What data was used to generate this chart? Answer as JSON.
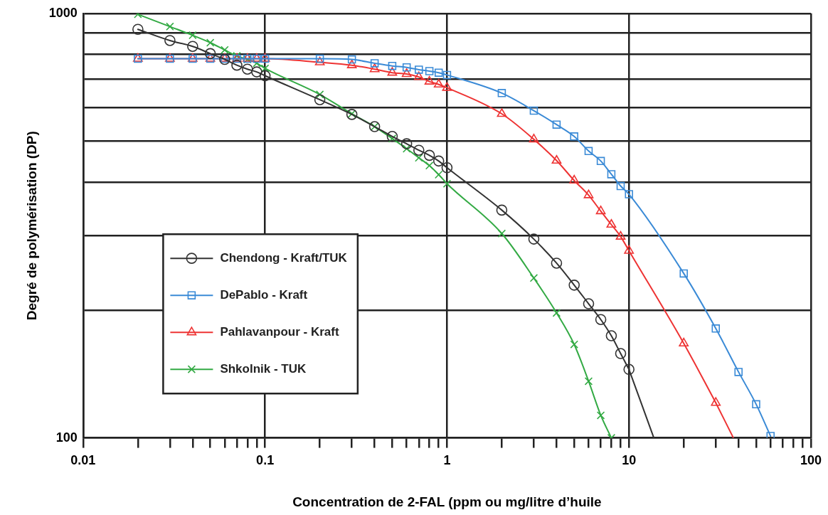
{
  "chart_data": {
    "type": "line",
    "xlabel": "Concentration de 2-FAL (ppm ou mg/litre d’huile",
    "ylabel": "Degré de polymérisation (DP)",
    "log": "xy",
    "grid": true,
    "legend": "left",
    "xlim": [
      0.01,
      100
    ],
    "ylim": [
      100,
      1000
    ],
    "xticks": [
      0.01,
      {
        "value": 0.02,
        "label": null
      },
      {
        "value": 0.03,
        "label": null
      },
      {
        "value": 0.04,
        "label": null
      },
      {
        "value": 0.05,
        "label": null
      },
      {
        "value": 0.06,
        "label": null
      },
      {
        "value": 0.07,
        "label": null
      },
      {
        "value": 0.08,
        "label": null
      },
      {
        "value": 0.09,
        "label": null
      },
      0.1,
      {
        "value": 0.2,
        "label": null
      },
      {
        "value": 0.3,
        "label": null
      },
      {
        "value": 0.4,
        "label": null
      },
      {
        "value": 0.5,
        "label": null
      },
      {
        "value": 0.6,
        "label": null
      },
      {
        "value": 0.7,
        "label": null
      },
      {
        "value": 0.8,
        "label": null
      },
      {
        "value": 0.9,
        "label": null
      },
      1,
      {
        "value": 2,
        "label": null
      },
      {
        "value": 3,
        "label": null
      },
      {
        "value": 4,
        "label": null
      },
      {
        "value": 5,
        "label": null
      },
      {
        "value": 6,
        "label": null
      },
      {
        "value": 7,
        "label": null
      },
      {
        "value": 8,
        "label": null
      },
      {
        "value": 9,
        "label": null
      },
      10,
      {
        "value": 20,
        "label": null
      },
      {
        "value": 30,
        "label": null
      },
      {
        "value": 40,
        "label": null
      },
      {
        "value": 50,
        "label": null
      },
      {
        "value": 60,
        "label": null
      },
      {
        "value": 70,
        "label": null
      },
      {
        "value": 80,
        "label": null
      },
      {
        "value": 90,
        "label": null
      },
      100
    ],
    "yticks": [
      100,
      {
        "value": 200,
        "label": null
      },
      {
        "value": 300,
        "label": null
      },
      {
        "value": 400,
        "label": null
      },
      {
        "value": 500,
        "label": null
      },
      {
        "value": 600,
        "label": null
      },
      {
        "value": 700,
        "label": null
      },
      {
        "value": 800,
        "label": null
      },
      {
        "value": 900,
        "label": null
      },
      1000
    ],
    "series": [
      {
        "name": "Chendong - Kraft/TUK",
        "color": "#333333",
        "marker": "circle",
        "x": [
          0.02,
          0.03,
          0.04,
          0.05,
          0.06,
          0.07,
          0.08,
          0.09,
          0.1,
          0.2,
          0.3,
          0.4,
          0.5,
          0.6,
          0.7,
          0.8,
          0.9,
          1,
          2,
          3,
          4,
          5,
          6,
          7,
          8,
          9,
          10
        ],
        "values": [
          917,
          863,
          836,
          804,
          779,
          755,
          739,
          728,
          713,
          626,
          578,
          541,
          513,
          493,
          476,
          463,
          449,
          433,
          344,
          294,
          258,
          229,
          207,
          190,
          174,
          158,
          145
        ]
      },
      {
        "name": "DePablo - Kraft",
        "color": "#3a8ad6",
        "marker": "square",
        "x": [
          0.02,
          0.03,
          0.04,
          0.05,
          0.06,
          0.07,
          0.08,
          0.09,
          0.1,
          0.2,
          0.3,
          0.4,
          0.5,
          0.6,
          0.7,
          0.8,
          0.9,
          1,
          2,
          3,
          4,
          5,
          6,
          7,
          8,
          9,
          10,
          20,
          30,
          40,
          50,
          60
        ],
        "values": [
          782,
          782,
          782,
          782,
          782,
          782,
          782,
          782,
          782,
          782,
          779,
          763,
          752,
          746,
          737,
          731,
          725,
          716,
          649,
          590,
          547,
          513,
          474,
          449,
          418,
          392,
          375,
          244,
          181,
          143,
          120,
          101
        ]
      },
      {
        "name": "Pahlavanpour - Kraft",
        "color": "#ee3333",
        "marker": "triangle",
        "x": [
          0.02,
          0.03,
          0.04,
          0.05,
          0.06,
          0.07,
          0.08,
          0.09,
          0.1,
          0.2,
          0.3,
          0.4,
          0.5,
          0.6,
          0.7,
          0.8,
          0.9,
          1,
          2,
          3,
          4,
          5,
          6,
          7,
          8,
          9,
          10,
          20,
          30
        ],
        "values": [
          782,
          782,
          782,
          782,
          782,
          782,
          782,
          782,
          782,
          767,
          755,
          739,
          725,
          720,
          708,
          691,
          680,
          668,
          580,
          505,
          450,
          404,
          373,
          342,
          318,
          298,
          276,
          167,
          121
        ]
      },
      {
        "name": "Shkolnik - TUK",
        "color": "#33aa44",
        "marker": "cross",
        "x": [
          0.02,
          0.03,
          0.04,
          0.05,
          0.06,
          0.07,
          0.08,
          0.09,
          0.1,
          0.2,
          0.3,
          0.4,
          0.5,
          0.6,
          0.7,
          0.8,
          0.9,
          1,
          2,
          3,
          4,
          5,
          6,
          7,
          8
        ],
        "values": [
          995,
          931,
          888,
          853,
          820,
          794,
          779,
          763,
          742,
          644,
          580,
          541,
          507,
          480,
          457,
          438,
          417,
          397,
          303,
          238,
          197,
          166,
          136,
          113,
          100
        ]
      },
      {
        "color": "#333333",
        "marker": "none",
        "x": [
          10,
          13.7
        ],
        "values": [
          145,
          100
        ]
      },
      {
        "color": "#ee3333",
        "marker": "none",
        "x": [
          30,
          37.5
        ],
        "values": [
          121,
          100
        ]
      }
    ]
  }
}
